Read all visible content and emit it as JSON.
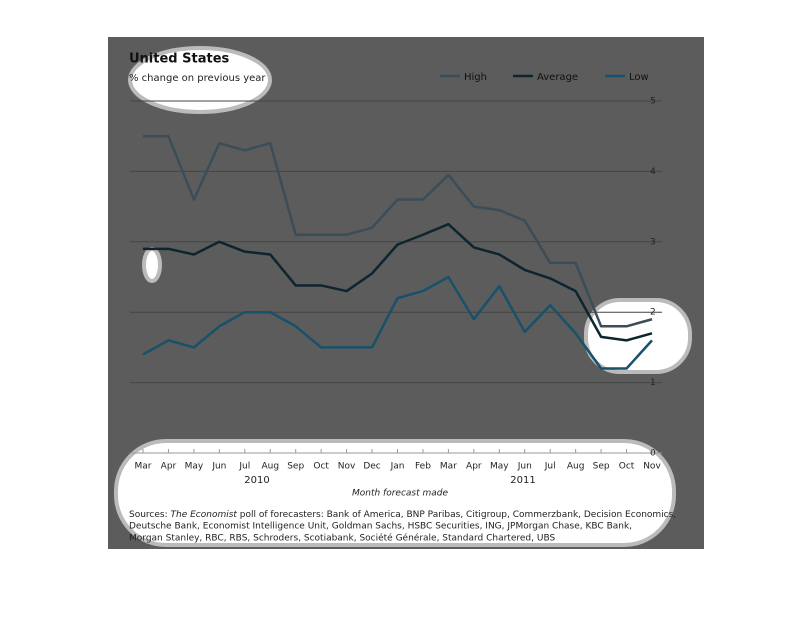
{
  "chart_data": {
    "type": "line",
    "title": "United States",
    "subtitle": "% change on previous year",
    "categories": [
      "Mar",
      "Apr",
      "May",
      "Jun",
      "Jul",
      "Aug",
      "Sep",
      "Oct",
      "Nov",
      "Dec",
      "Jan",
      "Feb",
      "Mar",
      "Apr",
      "May",
      "Jun",
      "Jul",
      "Aug",
      "Sep",
      "Oct",
      "Nov"
    ],
    "year_labels": [
      "2010",
      "2011"
    ],
    "x_label": "Month forecast made",
    "series": [
      {
        "name": "High",
        "color": "#3b4d59",
        "values": [
          4.5,
          4.5,
          3.6,
          4.4,
          4.3,
          4.4,
          3.1,
          3.1,
          3.1,
          3.2,
          3.6,
          3.6,
          3.95,
          3.5,
          3.45,
          3.3,
          2.7,
          2.7,
          1.8,
          1.8,
          1.9
        ]
      },
      {
        "name": "Average",
        "color": "#0e2530",
        "values": [
          2.9,
          2.9,
          2.82,
          3.0,
          2.86,
          2.82,
          2.38,
          2.38,
          2.3,
          2.55,
          2.96,
          3.1,
          3.25,
          2.92,
          2.82,
          2.6,
          2.48,
          2.3,
          1.65,
          1.6,
          1.7
        ]
      },
      {
        "name": "Low",
        "color": "#17516b",
        "values": [
          1.4,
          1.6,
          1.5,
          1.8,
          2.0,
          2.0,
          1.8,
          1.5,
          1.5,
          1.5,
          2.2,
          2.3,
          2.5,
          1.9,
          2.37,
          1.72,
          2.1,
          1.7,
          1.2,
          1.2,
          1.6
        ]
      }
    ],
    "ylim": [
      0,
      5
    ],
    "yticks": [
      0,
      1,
      2,
      3,
      4,
      5
    ],
    "grid": true,
    "legend": "top-right",
    "sources": [
      "Sources: ",
      "The Economist",
      " poll of forecasters: Bank of America, BNP Paribas, Citigroup, Commerzbank, Decision Economics,",
      "Deutsche Bank, Economist Intelligence Unit, Goldman Sachs, HSBC Securities, ING, JPMorgan Chase, KBC Bank,",
      "Morgan Stanley, RBC, RBS, Schroders, Scotiabank, Société Générale, Standard Chartered, UBS"
    ]
  }
}
